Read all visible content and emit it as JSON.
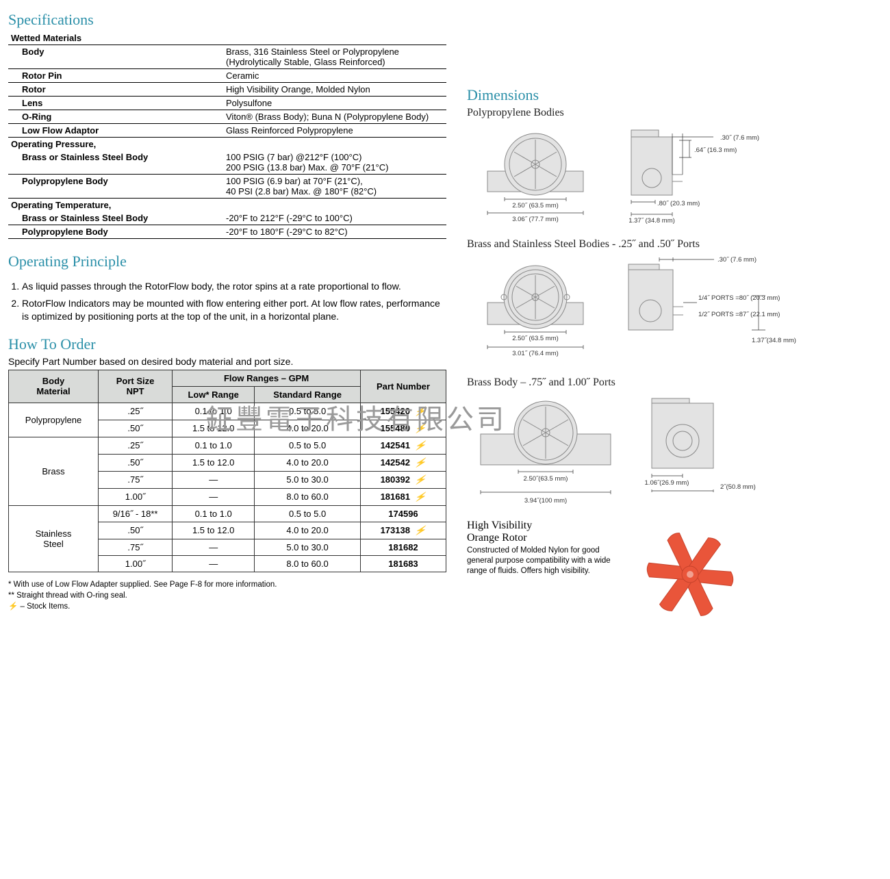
{
  "colors": {
    "heading": "#2a8fa8",
    "body_fill": "#e3e3e3",
    "body_stroke": "#888888",
    "table_header_bg": "#d9dbd9",
    "rotor": "#e9553a",
    "rotor_dark": "#c7432c"
  },
  "watermark": "鉦豐電子科技有限公司",
  "specs": {
    "title": "Specifications",
    "wetted_header": "Wetted Materials",
    "rows": [
      {
        "label": "Body",
        "value": "Brass, 316 Stainless Steel or Polypropylene\n(Hydrolytically Stable, Glass Reinforced)",
        "indent": true,
        "hr": true
      },
      {
        "label": "Rotor Pin",
        "value": "Ceramic",
        "indent": true,
        "hr": true
      },
      {
        "label": "Rotor",
        "value": "High Visibility Orange, Molded Nylon",
        "indent": true,
        "hr": true
      },
      {
        "label": "Lens",
        "value": "Polysulfone",
        "indent": true,
        "hr": true
      },
      {
        "label": "O-Ring",
        "value": "Viton® (Brass Body); Buna N (Polypropylene Body)",
        "indent": true,
        "hr": true
      },
      {
        "label": "Low Flow Adaptor",
        "value": "Glass Reinforced Polypropylene",
        "indent": true,
        "hr": true
      }
    ],
    "op_pressure_header": "Operating Pressure,",
    "op_pressure_rows": [
      {
        "label": "Brass or Stainless Steel Body",
        "value": "100 PSIG (7 bar) @212°F (100°C)\n200 PSIG (13.8 bar) Max. @ 70°F (21°C)",
        "indent": true,
        "hr": true
      },
      {
        "label": "Polypropylene Body",
        "value": "100 PSIG (6.9 bar) at 70°F (21°C),\n40 PSI (2.8 bar) Max. @ 180°F (82°C)",
        "indent": true,
        "hr": true
      }
    ],
    "op_temp_header": "Operating Temperature,",
    "op_temp_rows": [
      {
        "label": "Brass or Stainless Steel Body",
        "value": "-20°F to 212°F (-29°C to 100°C)",
        "indent": true,
        "hr": true
      },
      {
        "label": "Polypropylene Body",
        "value": "-20°F to 180°F (-29°C to 82°C)",
        "indent": true,
        "hr": true
      }
    ]
  },
  "principle": {
    "title": "Operating Principle",
    "items": [
      "As liquid passes through the RotorFlow body, the rotor spins at a rate proportional to flow.",
      "RotorFlow Indicators may be mounted with flow entering either port. At low flow rates, performance is optimized by positioning ports at the top of the unit, in a horizontal plane."
    ]
  },
  "order": {
    "title": "How To Order",
    "intro": "Specify Part Number based on desired body material and port size.",
    "headers": {
      "body": "Body\nMaterial",
      "port": "Port Size\nNPT",
      "flow": "Flow Ranges – GPM",
      "low": "Low* Range",
      "std": "Standard Range",
      "pn": "Part Number"
    },
    "groups": [
      {
        "material": "Polypropylene",
        "rows": [
          {
            "port": ".25˝",
            "low": "0.1 to 1.0",
            "std": "0.5 to 5.0",
            "pn": "155420",
            "stock": true
          },
          {
            "port": ".50˝",
            "low": "1.5 to 12.0",
            "std": "4.0 to 20.0",
            "pn": "155480",
            "stock": true
          }
        ]
      },
      {
        "material": "Brass",
        "rows": [
          {
            "port": ".25˝",
            "low": "0.1 to 1.0",
            "std": "0.5 to 5.0",
            "pn": "142541",
            "stock": true
          },
          {
            "port": ".50˝",
            "low": "1.5 to 12.0",
            "std": "4.0 to 20.0",
            "pn": "142542",
            "stock": true
          },
          {
            "port": ".75˝",
            "low": "—",
            "std": "5.0 to 30.0",
            "pn": "180392",
            "stock": true
          },
          {
            "port": "1.00˝",
            "low": "—",
            "std": "8.0 to 60.0",
            "pn": "181681",
            "stock": true
          }
        ]
      },
      {
        "material": "Stainless\nSteel",
        "rows": [
          {
            "port": "9/16˝ - 18**",
            "low": "0.1 to 1.0",
            "std": "0.5 to 5.0",
            "pn": "174596",
            "stock": false
          },
          {
            "port": ".50˝",
            "low": "1.5 to 12.0",
            "std": "4.0 to 20.0",
            "pn": "173138",
            "stock": true
          },
          {
            "port": ".75˝",
            "low": "—",
            "std": "5.0 to 30.0",
            "pn": "181682",
            "stock": false
          },
          {
            "port": "1.00˝",
            "low": "—",
            "std": "8.0 to 60.0",
            "pn": "181683",
            "stock": false
          }
        ]
      }
    ],
    "footnotes": [
      "* With use of Low Flow Adapter supplied. See Page F-8 for more information.",
      "** Straight thread with O-ring seal.",
      "⚡ – Stock Items."
    ]
  },
  "dimensions": {
    "title": "Dimensions",
    "poly": {
      "title": "Polypropylene Bodies",
      "front": {
        "w": "2.50˝ (63.5 mm)",
        "overall": "3.06˝ (77.7 mm)"
      },
      "side": {
        "h": ".64˝ (16.3 mm)",
        "w": ".80˝ (20.3 mm)",
        "overall": "1.37˝ (34.8 mm)",
        "depth": ".30˝ (7.6 mm)"
      }
    },
    "brass_ss": {
      "title": "Brass and Stainless Steel Bodies - .25˝ and .50˝ Ports",
      "front": {
        "w": "2.50˝ (63.5 mm)",
        "overall": "3.01˝ (76.4 mm)"
      },
      "side": {
        "top": ".30˝ (7.6 mm)",
        "ports14": "1/4˝ PORTS =\n80˝ (20.3 mm)",
        "ports12": "1/2˝ PORTS =\n87˝ (22.1 mm)",
        "right": "1.37˝\n(34.8 mm)"
      }
    },
    "brass_large": {
      "title": "Brass Body – .75˝ and 1.00˝ Ports",
      "front": {
        "w": "2.50˝\n(63.5 mm)",
        "overall": "3.94˝\n(100 mm)"
      },
      "side": {
        "w": "1.06˝\n(26.9 mm)",
        "overall": "2˝\n(50.8 mm)"
      }
    }
  },
  "rotor": {
    "title": "High Visibility\nOrange Rotor",
    "desc": "Constructed of Molded Nylon for good general purpose compatibility with a wide range of fluids. Offers high visibility."
  }
}
